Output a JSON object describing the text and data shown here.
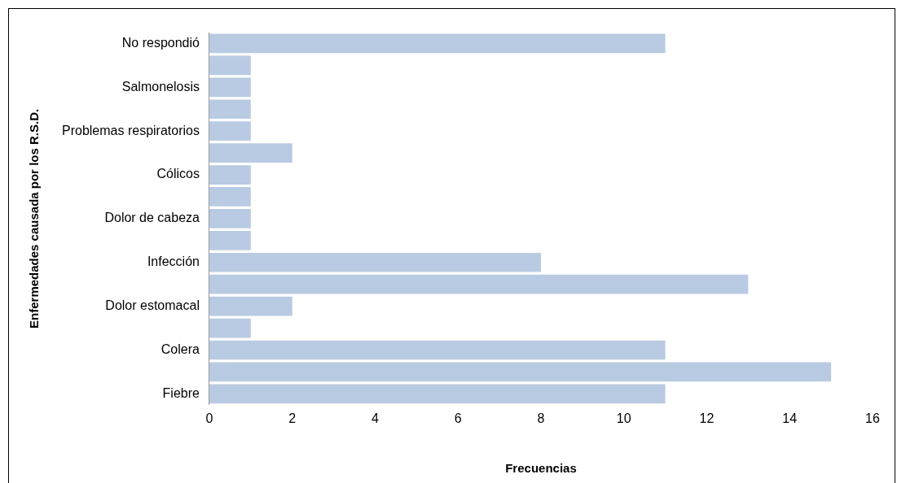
{
  "chart_data": {
    "type": "bar",
    "orientation": "horizontal",
    "xlabel": "Frecuencias",
    "ylabel": "Enfermedades causada por los R.S.D.",
    "categories": [
      "No respondió",
      null,
      "Salmonelosis",
      null,
      "Problemas respiratorios",
      null,
      "Cólicos",
      null,
      "Dolor de cabeza",
      null,
      "Infección",
      null,
      "Dolor estomacal",
      null,
      "Colera",
      null,
      "Fiebre"
    ],
    "values": [
      11,
      1,
      1,
      1,
      1,
      2,
      1,
      1,
      1,
      1,
      8,
      13,
      2,
      1,
      11,
      15,
      11
    ],
    "color": "#b9cbe2",
    "xlim": [
      0,
      16
    ],
    "xticks": [
      0,
      2,
      4,
      6,
      8,
      10,
      12,
      14,
      16
    ],
    "grid": false,
    "legend": false
  }
}
